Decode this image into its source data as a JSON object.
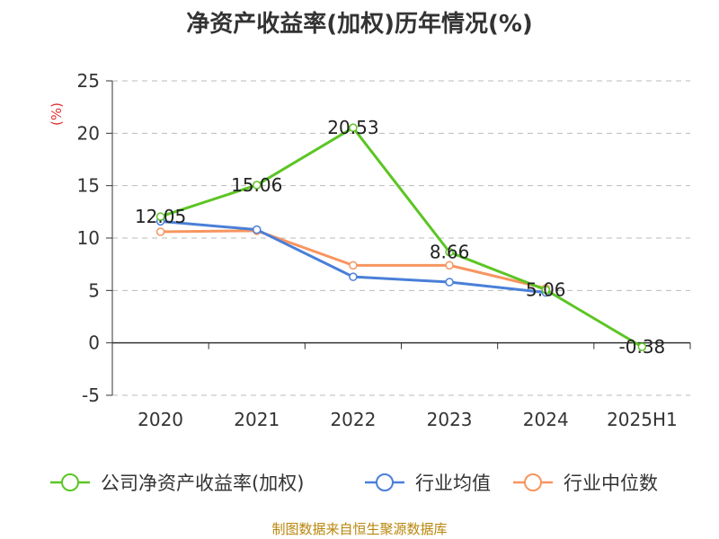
{
  "chart_data": {
    "type": "line",
    "title": "净资产收益率(加权)历年情况(%)",
    "ylabel": "(%)",
    "categories": [
      "2020",
      "2021",
      "2022",
      "2023",
      "2024",
      "2025H1"
    ],
    "yticks": [
      "-5",
      "0",
      "5",
      "10",
      "15",
      "20",
      "25"
    ],
    "ylim": [
      -5,
      25
    ],
    "grid": true,
    "legend_position": "bottom",
    "series": [
      {
        "name": "公司净资产收益率(加权)",
        "color": "#5cc524",
        "values": [
          12.05,
          15.06,
          20.53,
          8.66,
          5.06,
          -0.38
        ],
        "labels": [
          "12.05",
          "15.06",
          "20.53",
          "8.66",
          "5.06",
          "-0.38"
        ]
      },
      {
        "name": "行业均值",
        "color": "#4a7fd8",
        "values": [
          11.6,
          10.8,
          6.3,
          5.8,
          4.8,
          null
        ]
      },
      {
        "name": "行业中位数",
        "color": "#f79560",
        "values": [
          10.6,
          10.7,
          7.4,
          7.4,
          5.2,
          null
        ]
      }
    ]
  },
  "footer": {
    "source": "制图数据来自恒生聚源数据库"
  }
}
